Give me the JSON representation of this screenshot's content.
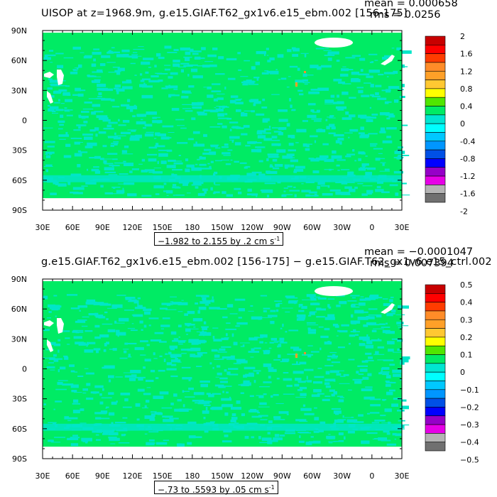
{
  "chart_data": [
    {
      "type": "heatmap",
      "title": "UISOP at z=1968.9m, g.e15.GIAF.T62_gx1v6.e15_ebm.002 [156-175]",
      "stats": {
        "mean": "mean = 0.000658",
        "rms": "rms = 0.0256"
      },
      "xlabel": "",
      "ylabel": "",
      "x_tick_labels": [
        "30E",
        "60E",
        "90E",
        "120E",
        "150E",
        "180",
        "150W",
        "120W",
        "90W",
        "60W",
        "30W",
        "0",
        "30E"
      ],
      "y_tick_labels": [
        "90N",
        "60N",
        "30N",
        "0",
        "30S",
        "60S",
        "90S"
      ],
      "xlim": [
        30,
        390
      ],
      "ylim": [
        -90,
        90
      ],
      "colorbar_labels": [
        "2",
        "1.6",
        "1.2",
        "0.8",
        "0.4",
        "0",
        "-0.4",
        "-0.8",
        "-1.2",
        "-1.6",
        "-2"
      ],
      "colorbar_colors": [
        "#c80000",
        "#ff0000",
        "#ff3c00",
        "#ff8c28",
        "#ffa028",
        "#ffc832",
        "#ffff00",
        "#50e600",
        "#00eb64",
        "#00e6d2",
        "#00ffff",
        "#00c8ff",
        "#0096ff",
        "#0050e6",
        "#0000ff",
        "#9600c8",
        "#e600e6",
        "#b4b4b4",
        "#707070"
      ],
      "range_text": "−1.982 to 2.155 by .2 cm s",
      "range_sup": "-1",
      "colors": {
        "land": "#00eb64",
        "near_zero_neg": "#00e6c8",
        "land_mask": "#ffffff"
      }
    },
    {
      "type": "heatmap",
      "title": "g.e15.GIAF.T62_gx1v6.e15_ebm.002 [156-175] − g.e15.GIAF.T62_gx1v6.e15_ctrl.002",
      "stats": {
        "mean": "mean = −0.0001047",
        "rms": "rms = 0.007394"
      },
      "xlabel": "",
      "ylabel": "",
      "x_tick_labels": [
        "30E",
        "60E",
        "90E",
        "120E",
        "150E",
        "180",
        "150W",
        "120W",
        "90W",
        "60W",
        "30W",
        "0",
        "30E"
      ],
      "y_tick_labels": [
        "90N",
        "60N",
        "30N",
        "0",
        "30S",
        "60S",
        "90S"
      ],
      "xlim": [
        30,
        390
      ],
      "ylim": [
        -90,
        90
      ],
      "colorbar_labels": [
        "0.5",
        "0.4",
        "0.3",
        "0.2",
        "0.1",
        "0",
        "−0.1",
        "−0.2",
        "−0.3",
        "−0.4",
        "−0.5"
      ],
      "colorbar_colors": [
        "#c80000",
        "#ff0000",
        "#ff3c00",
        "#ff8c28",
        "#ffa028",
        "#ffc832",
        "#ffff00",
        "#50e600",
        "#00eb64",
        "#00e6d2",
        "#00ffff",
        "#00c8ff",
        "#0096ff",
        "#0050e6",
        "#0000ff",
        "#9600c8",
        "#e600e6",
        "#b4b4b4",
        "#707070"
      ],
      "range_text": "−.73 to .5593 by .05 cm s",
      "range_sup": "-1",
      "colors": {
        "land": "#00eb64",
        "near_zero_neg": "#00e6c8",
        "land_mask": "#ffffff"
      }
    }
  ]
}
